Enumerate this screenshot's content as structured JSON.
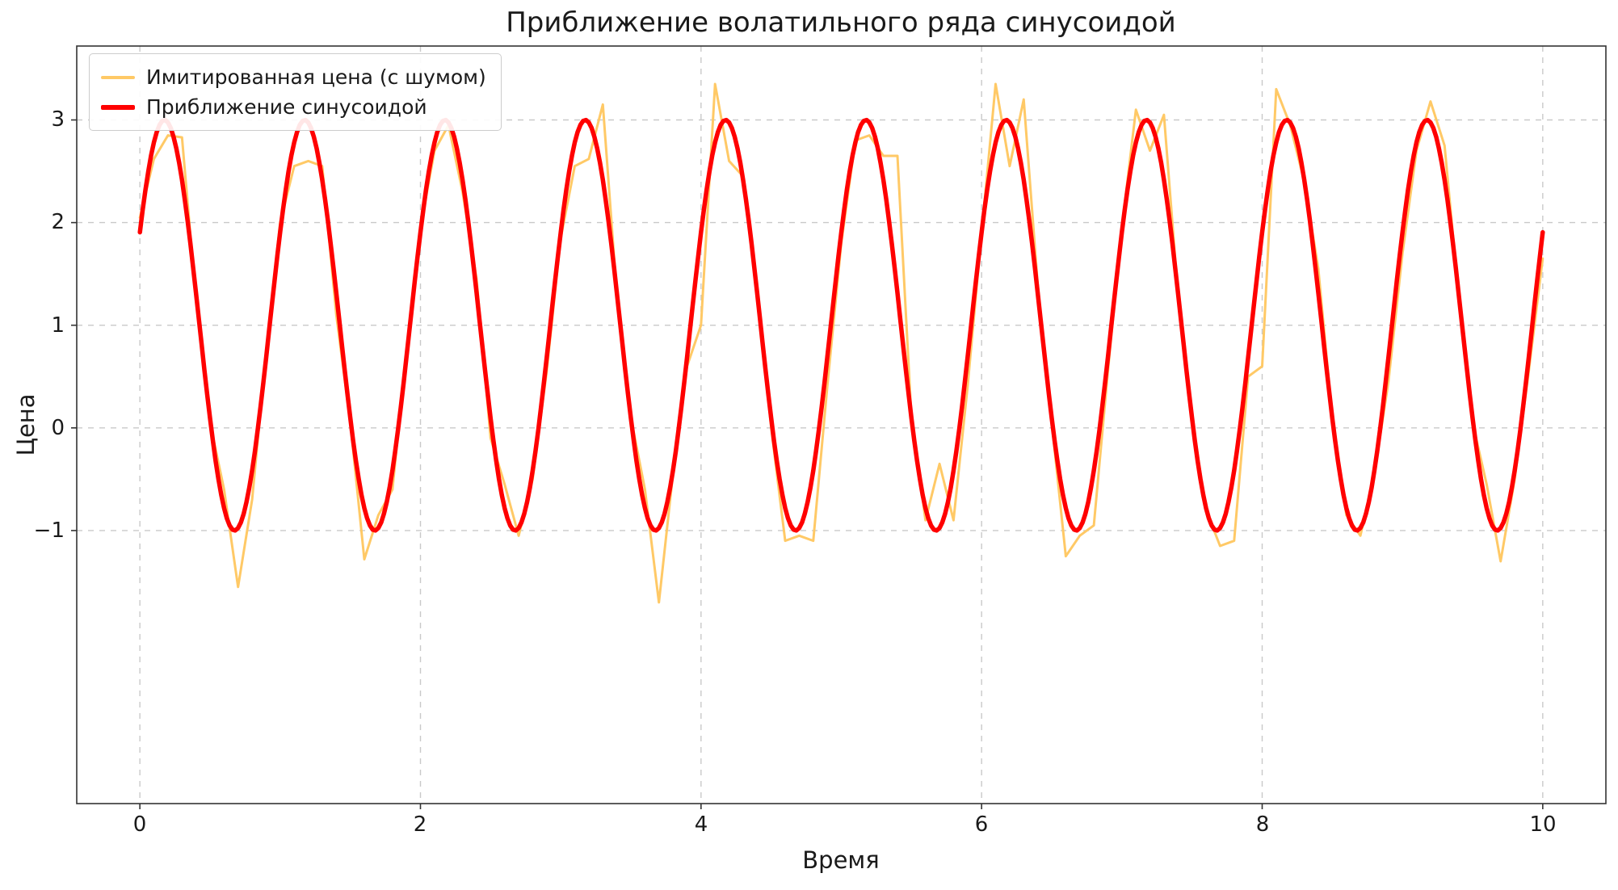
{
  "chart_data": {
    "type": "line",
    "title": "Приближение волатильного ряда синусоидой",
    "xlabel": "Время",
    "ylabel": "Цена",
    "xlim": [
      -0.45,
      10.45
    ],
    "ylim": [
      -3.66,
      3.72
    ],
    "xticks": [
      0,
      2,
      4,
      6,
      8,
      10
    ],
    "xtick_labels": [
      "0",
      "2",
      "4",
      "6",
      "8",
      "10"
    ],
    "yticks": [
      -1,
      0,
      1,
      2,
      3
    ],
    "ytick_labels": [
      "−1",
      "0",
      "1",
      "2",
      "3"
    ],
    "grid": "dashed",
    "grid_color": "#c9c9c9",
    "legend_position": "upper-left",
    "series": [
      {
        "name": "Имитированная цена (с шумом)",
        "color": "#FFC966",
        "linewidth": 3,
        "x_start": 0,
        "x_step": 0.1,
        "values": [
          2.05,
          2.62,
          2.85,
          2.83,
          1.25,
          0.05,
          -0.6,
          -1.55,
          -0.7,
          0.75,
          2.0,
          2.55,
          2.6,
          2.55,
          1.1,
          0.05,
          -1.28,
          -0.85,
          -0.6,
          0.75,
          1.95,
          2.7,
          2.95,
          2.3,
          1.45,
          -0.1,
          -0.55,
          -1.05,
          -0.5,
          0.55,
          1.85,
          2.55,
          2.62,
          3.15,
          1.3,
          0.1,
          -0.6,
          -1.7,
          -0.45,
          0.6,
          1.0,
          3.35,
          2.6,
          2.45,
          1.35,
          0.0,
          -1.1,
          -1.05,
          -1.1,
          0.4,
          1.8,
          2.8,
          2.85,
          2.65,
          2.65,
          0.1,
          -0.9,
          -0.35,
          -0.9,
          0.4,
          1.9,
          3.35,
          2.55,
          3.2,
          1.4,
          0.05,
          -1.25,
          -1.05,
          -0.95,
          0.55,
          1.95,
          3.1,
          2.7,
          3.05,
          1.3,
          0.1,
          -0.8,
          -1.15,
          -1.1,
          0.5,
          0.6,
          3.3,
          2.95,
          2.4,
          1.55,
          0.1,
          -0.85,
          -1.05,
          -0.45,
          0.45,
          1.7,
          2.7,
          3.18,
          2.75,
          1.3,
          0.05,
          -0.55,
          -1.3,
          -0.5,
          0.55,
          1.65
        ]
      },
      {
        "name": "Приближение синусоидой",
        "color": "#FF0000",
        "linewidth": 5.5,
        "fit": {
          "type": "sine",
          "offset": 1.0,
          "amplitude": 2.0,
          "period": 1.0,
          "phase": 0.47,
          "x_start": 0,
          "x_end": 10
        }
      }
    ]
  }
}
